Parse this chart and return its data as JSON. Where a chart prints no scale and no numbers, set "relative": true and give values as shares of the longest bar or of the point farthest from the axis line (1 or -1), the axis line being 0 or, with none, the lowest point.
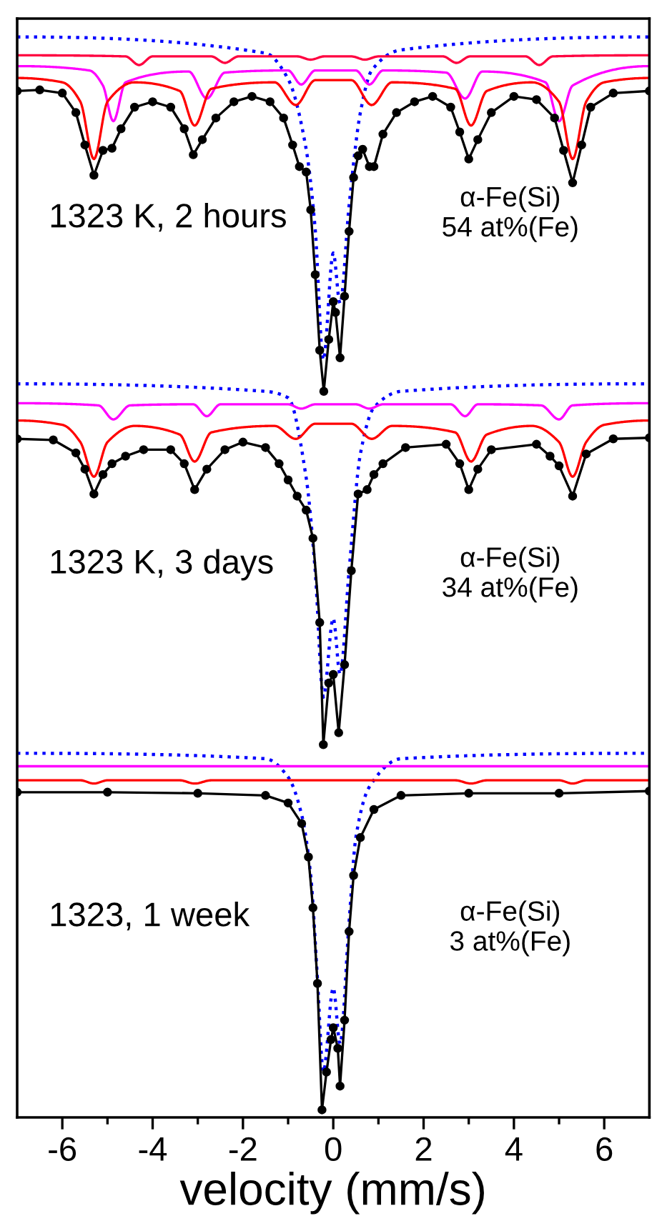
{
  "chart_data": {
    "type": "line",
    "relative": true,
    "xlabel": "velocity (mm/s)",
    "xlim": [
      -7,
      7
    ],
    "xticks": [
      -6,
      {
        "value": -5,
        "label": null
      },
      -4,
      {
        "value": -3,
        "label": null
      },
      -2,
      {
        "value": -1,
        "label": null
      },
      0,
      {
        "value": 1,
        "label": null
      },
      2,
      {
        "value": 3,
        "label": null
      },
      4,
      {
        "value": 5,
        "label": null
      },
      6
    ],
    "tick_labels": "x",
    "grid": false,
    "annotations": [
      "1323 K, 2 hours",
      "α-Fe(Si)\n54 at%(Fe)",
      "1323 K, 3 days",
      "α-Fe(Si)\n34 at%(Fe)",
      "1323, 1 week",
      "α-Fe(Si)\n3 at%(Fe)"
    ],
    "series": [
      {
        "color": "#0000ff",
        "line_style": "dotted",
        "marker": "none",
        "x": [
          -7,
          -1.5,
          -1.0,
          -0.6,
          -0.4,
          -0.22,
          0,
          0.15,
          0.35,
          0.6,
          0.85,
          1.5,
          7
        ],
        "values": [
          1.0,
          0.985,
          0.961,
          0.896,
          0.822,
          0.701,
          0.8,
          0.753,
          0.844,
          0.93,
          0.969,
          0.988,
          1.0
        ]
      },
      {
        "color": "#ff0040",
        "line_style": "solid",
        "marker": "none",
        "x": [
          -7,
          -4.6,
          -4.3,
          -4.0,
          -2.7,
          -2.4,
          -2.1,
          -0.8,
          -0.5,
          -0.2,
          0.4,
          0.7,
          1.0,
          2.43,
          2.73,
          3.03,
          4.26,
          4.56,
          4.86,
          7
        ],
        "values": [
          0.983,
          0.982,
          0.974,
          0.982,
          0.982,
          0.976,
          0.982,
          0.982,
          0.979,
          0.982,
          0.982,
          0.979,
          0.982,
          0.982,
          0.976,
          0.982,
          0.982,
          0.974,
          0.982,
          0.983
        ]
      },
      {
        "color": "#ff00ff",
        "line_style": "solid",
        "marker": "none",
        "x": [
          -7,
          -5.4,
          -5.1,
          -4.87,
          -4.6,
          -3.2,
          -2.8,
          -2.4,
          -1.0,
          -0.71,
          -0.4,
          0.5,
          0.8,
          1.1,
          2.5,
          2.92,
          3.3,
          4.7,
          5.0,
          5.3,
          7
        ],
        "values": [
          0.973,
          0.969,
          0.955,
          0.922,
          0.958,
          0.968,
          0.943,
          0.967,
          0.969,
          0.956,
          0.969,
          0.969,
          0.956,
          0.969,
          0.967,
          0.943,
          0.968,
          0.958,
          0.922,
          0.955,
          0.973
        ]
      },
      {
        "color": "#ff0000",
        "line_style": "solid",
        "marker": "none",
        "x": [
          -7,
          -6,
          -5.6,
          -5.3,
          -5.0,
          -4.4,
          -3.4,
          -3.07,
          -2.7,
          -1.3,
          -0.83,
          -0.4,
          0.4,
          0.85,
          1.3,
          2.7,
          3.05,
          3.4,
          4.4,
          5.0,
          5.3,
          5.6,
          6,
          7
        ],
        "values": [
          0.962,
          0.958,
          0.94,
          0.887,
          0.94,
          0.958,
          0.95,
          0.918,
          0.952,
          0.958,
          0.937,
          0.96,
          0.96,
          0.937,
          0.958,
          0.952,
          0.918,
          0.95,
          0.958,
          0.94,
          0.887,
          0.94,
          0.958,
          0.962
        ]
      },
      {
        "color": "#000000",
        "line_style": "solid",
        "marker": "circle",
        "x": [
          -7,
          -6.5,
          -6,
          -5.7,
          -5.5,
          -5.3,
          -5.1,
          -4.9,
          -4.7,
          -4.4,
          -4,
          -3.6,
          -3.3,
          -3.1,
          -2.9,
          -2.6,
          -2.2,
          -1.8,
          -1.4,
          -1.1,
          -0.9,
          -0.75,
          -0.6,
          -0.5,
          -0.4,
          -0.3,
          -0.21,
          -0.1,
          0,
          0.05,
          0.15,
          0.25,
          0.35,
          0.45,
          0.55,
          0.65,
          0.8,
          0.9,
          1.1,
          1.4,
          1.8,
          2.2,
          2.6,
          2.8,
          3.0,
          3.2,
          3.5,
          4.0,
          4.5,
          4.9,
          5.1,
          5.3,
          5.5,
          5.7,
          6.2,
          7
        ],
        "values": [
          0.95,
          0.951,
          0.948,
          0.93,
          0.9,
          0.872,
          0.895,
          0.897,
          0.915,
          0.935,
          0.94,
          0.935,
          0.915,
          0.891,
          0.905,
          0.925,
          0.94,
          0.945,
          0.94,
          0.925,
          0.9,
          0.88,
          0.875,
          0.84,
          0.78,
          0.71,
          0.672,
          0.72,
          0.755,
          0.745,
          0.703,
          0.76,
          0.82,
          0.87,
          0.89,
          0.896,
          0.88,
          0.88,
          0.91,
          0.93,
          0.94,
          0.945,
          0.935,
          0.912,
          0.887,
          0.905,
          0.93,
          0.945,
          0.942,
          0.925,
          0.895,
          0.865,
          0.9,
          0.935,
          0.948,
          0.95
        ]
      },
      {
        "color": "#0000ff",
        "line_style": "dotted",
        "marker": "none",
        "x": [
          -7,
          -1.5,
          -1.0,
          -0.6,
          -0.4,
          -0.22,
          0,
          0.15,
          0.35,
          0.6,
          0.9,
          1.5,
          7
        ],
        "values": [
          0.679,
          0.672,
          0.666,
          0.592,
          0.506,
          0.389,
          0.462,
          0.41,
          0.506,
          0.614,
          0.657,
          0.672,
          0.679
        ]
      },
      {
        "color": "#ff00ff",
        "line_style": "solid",
        "marker": "none",
        "x": [
          -7,
          -5.2,
          -4.87,
          -4.5,
          -3.1,
          -2.8,
          -2.5,
          -1.0,
          -0.71,
          -0.4,
          0.5,
          0.8,
          1.1,
          2.6,
          2.92,
          3.2,
          4.6,
          5.0,
          5.3,
          7
        ],
        "values": [
          0.661,
          0.659,
          0.646,
          0.659,
          0.66,
          0.649,
          0.66,
          0.66,
          0.656,
          0.66,
          0.66,
          0.656,
          0.66,
          0.66,
          0.649,
          0.66,
          0.659,
          0.646,
          0.659,
          0.661
        ]
      },
      {
        "color": "#ff0000",
        "line_style": "solid",
        "marker": "none",
        "x": [
          -7,
          -6,
          -5.6,
          -5.3,
          -5.0,
          -4.4,
          -3.4,
          -3.07,
          -2.7,
          -1.3,
          -0.83,
          -0.4,
          0.4,
          0.85,
          1.3,
          2.7,
          3.05,
          3.4,
          4.4,
          5.0,
          5.3,
          5.6,
          6,
          7
        ],
        "values": [
          0.645,
          0.641,
          0.625,
          0.593,
          0.625,
          0.64,
          0.632,
          0.607,
          0.634,
          0.64,
          0.628,
          0.642,
          0.642,
          0.628,
          0.64,
          0.634,
          0.607,
          0.632,
          0.64,
          0.625,
          0.593,
          0.625,
          0.641,
          0.645
        ]
      },
      {
        "color": "#000000",
        "line_style": "solid",
        "marker": "circle",
        "x": [
          -7,
          -6.2,
          -5.7,
          -5.5,
          -5.3,
          -5.1,
          -4.9,
          -4.6,
          -4.2,
          -3.6,
          -3.3,
          -3.07,
          -2.8,
          -2.4,
          -2,
          -1.5,
          -1.2,
          -1.0,
          -0.8,
          -0.6,
          -0.45,
          -0.3,
          -0.22,
          -0.1,
          0,
          0.12,
          0.25,
          0.4,
          0.55,
          0.75,
          0.9,
          1.1,
          1.6,
          2.5,
          2.8,
          3.0,
          3.2,
          3.5,
          4.5,
          4.8,
          5.0,
          5.3,
          5.6,
          6.2,
          7
        ],
        "values": [
          0.628,
          0.627,
          0.615,
          0.6,
          0.577,
          0.595,
          0.605,
          0.612,
          0.618,
          0.618,
          0.605,
          0.581,
          0.6,
          0.618,
          0.625,
          0.62,
          0.605,
          0.59,
          0.575,
          0.562,
          0.536,
          0.458,
          0.345,
          0.402,
          0.41,
          0.356,
          0.419,
          0.506,
          0.577,
          0.581,
          0.595,
          0.605,
          0.62,
          0.623,
          0.605,
          0.581,
          0.6,
          0.618,
          0.623,
          0.612,
          0.603,
          0.575,
          0.614,
          0.628,
          0.629
        ]
      },
      {
        "color": "#0000ff",
        "line_style": "dotted",
        "marker": "none",
        "x": [
          -7,
          -1.5,
          -1.0,
          -0.7,
          -0.5,
          -0.35,
          -0.22,
          0,
          0.15,
          0.35,
          0.5,
          0.8,
          1.5,
          7
        ],
        "values": [
          0.337,
          0.332,
          0.315,
          0.28,
          0.224,
          0.128,
          0.042,
          0.12,
          0.068,
          0.181,
          0.259,
          0.306,
          0.332,
          0.337
        ]
      },
      {
        "color": "#ff00ff",
        "line_style": "solid",
        "marker": "none",
        "x": [
          -7,
          7
        ],
        "values": [
          0.325,
          0.325
        ]
      },
      {
        "color": "#ff0000",
        "line_style": "solid",
        "marker": "none",
        "x": [
          -7,
          -5.6,
          -5.3,
          -5.0,
          -3.4,
          -3.07,
          -2.7,
          2.7,
          3.05,
          3.4,
          5.0,
          5.3,
          5.6,
          7
        ],
        "values": [
          0.312,
          0.312,
          0.309,
          0.312,
          0.312,
          0.309,
          0.312,
          0.312,
          0.309,
          0.312,
          0.312,
          0.309,
          0.312,
          0.312
        ]
      },
      {
        "color": "#000000",
        "line_style": "solid",
        "marker": "circle",
        "x": [
          -7,
          -5,
          -3,
          -1.5,
          -1.0,
          -0.7,
          -0.55,
          -0.45,
          -0.35,
          -0.25,
          -0.15,
          -0.05,
          0,
          0.1,
          0.15,
          0.25,
          0.35,
          0.45,
          0.6,
          0.9,
          1.5,
          3,
          5,
          7
        ],
        "values": [
          0.301,
          0.301,
          0.3,
          0.298,
          0.291,
          0.272,
          0.241,
          0.194,
          0.124,
          0.007,
          0.042,
          0.072,
          0.083,
          0.064,
          0.029,
          0.09,
          0.172,
          0.224,
          0.259,
          0.285,
          0.298,
          0.3,
          0.3,
          0.302
        ]
      }
    ]
  }
}
